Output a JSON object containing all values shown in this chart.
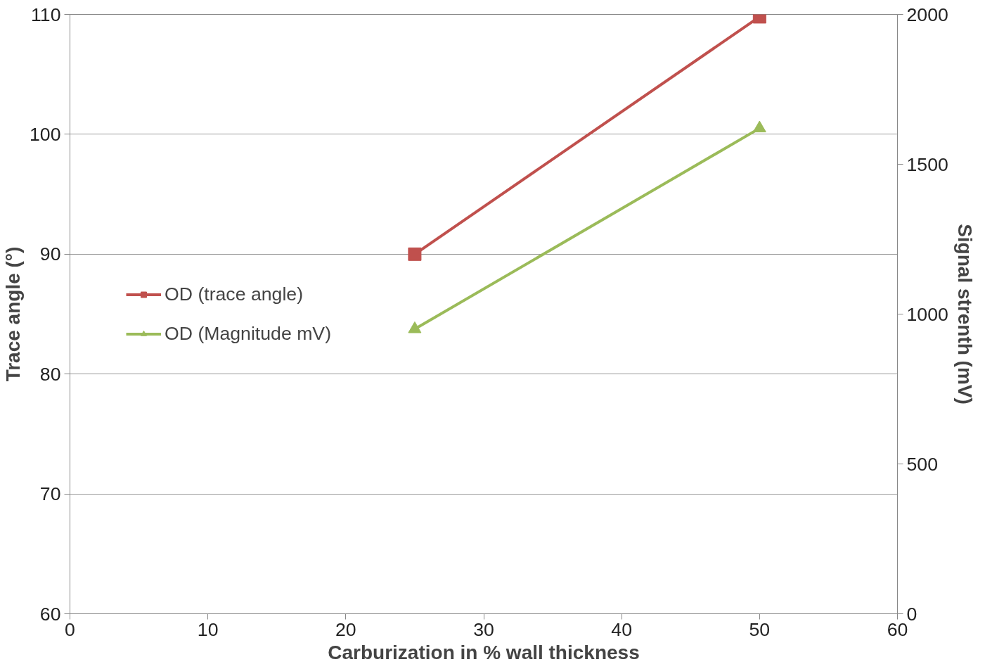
{
  "chart_data": {
    "type": "line",
    "xlabel": "Carburization in % wall thickness",
    "ylabel": "Trace angle (°)",
    "y2label": "Signal strenth (mV)",
    "x": [
      25,
      50
    ],
    "series": [
      {
        "name": "OD (trace angle)",
        "color": "#c0504d",
        "values": [
          90,
          109.8
        ],
        "marker": "square"
      },
      {
        "name": "OD (Magnitude mV)",
        "color": "#9bbb59",
        "values": [
          950,
          1620
        ],
        "marker": "triangle",
        "axis": "y2"
      }
    ],
    "xlim": [
      0,
      60
    ],
    "xticks": [
      0,
      10,
      20,
      30,
      40,
      50,
      60
    ],
    "ylim": [
      60,
      110
    ],
    "yticks": [
      60,
      70,
      80,
      90,
      100,
      110
    ],
    "y2lim": [
      0,
      2000
    ],
    "y2ticks": [
      0,
      500,
      1000,
      1500,
      2000
    ],
    "grid": "y",
    "legend": "left",
    "line_style": "solid"
  }
}
